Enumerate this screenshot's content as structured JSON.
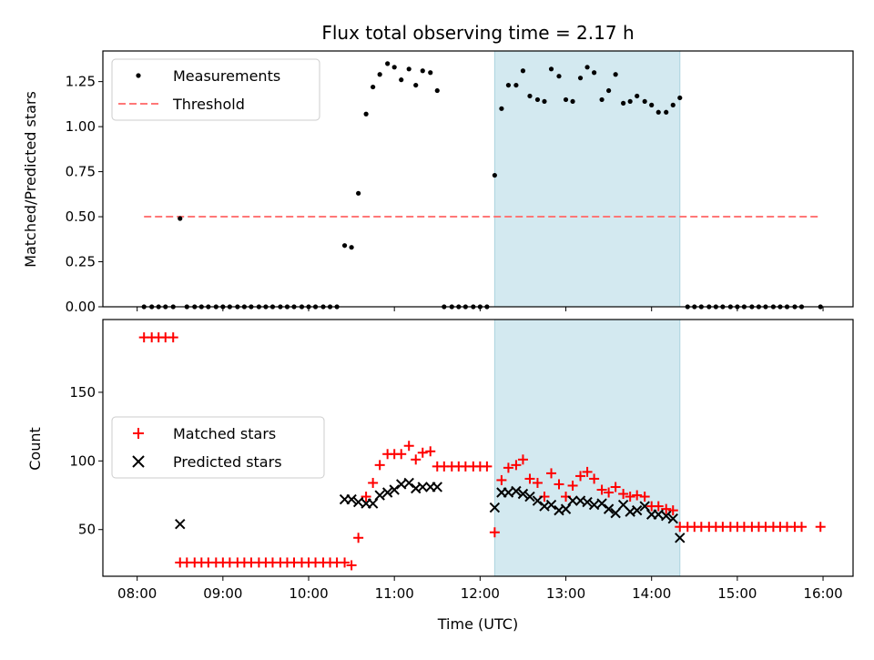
{
  "chart_data": [
    {
      "type": "scatter",
      "title": "Flux total observing time = 2.17 h",
      "xlabel": "",
      "ylabel": "Matched/Predicted stars",
      "xlim": [
        7.6,
        16.35
      ],
      "ylim": [
        0,
        1.42
      ],
      "yticks": [
        0.0,
        0.25,
        0.5,
        0.75,
        1.0,
        1.25
      ],
      "ytick_labels": [
        "0.00",
        "0.25",
        "0.50",
        "0.75",
        "1.00",
        "1.25"
      ],
      "xticks": [
        8,
        9,
        10,
        11,
        12,
        13,
        14,
        15,
        16
      ],
      "shaded_span": [
        12.17,
        14.33
      ],
      "shade_color": "#d3e9f0",
      "threshold": {
        "name": "Threshold",
        "value": 0.5,
        "x_range": [
          8.08,
          15.97
        ],
        "color": "#ff7777"
      },
      "legend": {
        "position": "upper-left",
        "entries": [
          "Measurements",
          "Threshold"
        ]
      },
      "series": [
        {
          "name": "Measurements",
          "color": "#000000",
          "points": [
            [
              8.08,
              0
            ],
            [
              8.17,
              0
            ],
            [
              8.25,
              0
            ],
            [
              8.33,
              0
            ],
            [
              8.42,
              0
            ],
            [
              8.5,
              0.49
            ],
            [
              8.58,
              0
            ],
            [
              8.67,
              0
            ],
            [
              8.75,
              0
            ],
            [
              8.83,
              0
            ],
            [
              8.92,
              0
            ],
            [
              9.0,
              0
            ],
            [
              9.08,
              0
            ],
            [
              9.17,
              0
            ],
            [
              9.25,
              0
            ],
            [
              9.33,
              0
            ],
            [
              9.42,
              0
            ],
            [
              9.5,
              0
            ],
            [
              9.58,
              0
            ],
            [
              9.67,
              0
            ],
            [
              9.75,
              0
            ],
            [
              9.83,
              0
            ],
            [
              9.92,
              0
            ],
            [
              10.0,
              0
            ],
            [
              10.08,
              0
            ],
            [
              10.17,
              0
            ],
            [
              10.25,
              0
            ],
            [
              10.33,
              0
            ],
            [
              10.42,
              0.34
            ],
            [
              10.5,
              0.33
            ],
            [
              10.58,
              0.63
            ],
            [
              10.67,
              1.07
            ],
            [
              10.75,
              1.22
            ],
            [
              10.83,
              1.29
            ],
            [
              10.92,
              1.35
            ],
            [
              11.0,
              1.33
            ],
            [
              11.08,
              1.26
            ],
            [
              11.17,
              1.32
            ],
            [
              11.25,
              1.23
            ],
            [
              11.33,
              1.31
            ],
            [
              11.42,
              1.3
            ],
            [
              11.5,
              1.2
            ],
            [
              11.58,
              0
            ],
            [
              11.67,
              0
            ],
            [
              11.75,
              0
            ],
            [
              11.83,
              0
            ],
            [
              11.92,
              0
            ],
            [
              12.0,
              0
            ],
            [
              12.08,
              0
            ],
            [
              12.17,
              0.73
            ],
            [
              12.25,
              1.1
            ],
            [
              12.33,
              1.23
            ],
            [
              12.42,
              1.23
            ],
            [
              12.5,
              1.31
            ],
            [
              12.58,
              1.17
            ],
            [
              12.67,
              1.15
            ],
            [
              12.75,
              1.14
            ],
            [
              12.83,
              1.32
            ],
            [
              12.92,
              1.28
            ],
            [
              13.0,
              1.15
            ],
            [
              13.08,
              1.14
            ],
            [
              13.17,
              1.27
            ],
            [
              13.25,
              1.33
            ],
            [
              13.33,
              1.3
            ],
            [
              13.42,
              1.15
            ],
            [
              13.5,
              1.2
            ],
            [
              13.58,
              1.29
            ],
            [
              13.67,
              1.13
            ],
            [
              13.75,
              1.14
            ],
            [
              13.83,
              1.17
            ],
            [
              13.92,
              1.14
            ],
            [
              14.0,
              1.12
            ],
            [
              14.08,
              1.08
            ],
            [
              14.17,
              1.08
            ],
            [
              14.25,
              1.12
            ],
            [
              14.33,
              1.16
            ],
            [
              14.42,
              0
            ],
            [
              14.5,
              0
            ],
            [
              14.58,
              0
            ],
            [
              14.67,
              0
            ],
            [
              14.75,
              0
            ],
            [
              14.83,
              0
            ],
            [
              14.92,
              0
            ],
            [
              15.0,
              0
            ],
            [
              15.08,
              0
            ],
            [
              15.17,
              0
            ],
            [
              15.25,
              0
            ],
            [
              15.33,
              0
            ],
            [
              15.42,
              0
            ],
            [
              15.5,
              0
            ],
            [
              15.58,
              0
            ],
            [
              15.67,
              0
            ],
            [
              15.75,
              0
            ],
            [
              15.97,
              0
            ]
          ]
        }
      ]
    },
    {
      "type": "scatter",
      "title": "",
      "xlabel": "Time (UTC)",
      "ylabel": "Count",
      "xlim": [
        7.6,
        16.35
      ],
      "ylim": [
        16,
        203
      ],
      "yticks": [
        50,
        100,
        150
      ],
      "ytick_labels": [
        "50",
        "100",
        "150"
      ],
      "xticks": [
        8,
        9,
        10,
        11,
        12,
        13,
        14,
        15,
        16
      ],
      "xtick_labels": [
        "08:00",
        "09:00",
        "10:00",
        "11:00",
        "12:00",
        "13:00",
        "14:00",
        "15:00",
        "16:00"
      ],
      "shaded_span": [
        12.17,
        14.33
      ],
      "shade_color": "#d3e9f0",
      "legend": {
        "position": "center-left",
        "entries": [
          "Matched stars",
          "Predicted stars"
        ]
      },
      "series": [
        {
          "name": "Matched stars",
          "marker": "plus",
          "color": "#ff0000",
          "points": [
            [
              8.08,
              190
            ],
            [
              8.17,
              190
            ],
            [
              8.25,
              190
            ],
            [
              8.33,
              190
            ],
            [
              8.42,
              190
            ],
            [
              8.5,
              26
            ],
            [
              8.58,
              26
            ],
            [
              8.67,
              26
            ],
            [
              8.75,
              26
            ],
            [
              8.83,
              26
            ],
            [
              8.92,
              26
            ],
            [
              9.0,
              26
            ],
            [
              9.08,
              26
            ],
            [
              9.17,
              26
            ],
            [
              9.25,
              26
            ],
            [
              9.33,
              26
            ],
            [
              9.42,
              26
            ],
            [
              9.5,
              26
            ],
            [
              9.58,
              26
            ],
            [
              9.67,
              26
            ],
            [
              9.75,
              26
            ],
            [
              9.83,
              26
            ],
            [
              9.92,
              26
            ],
            [
              10.0,
              26
            ],
            [
              10.08,
              26
            ],
            [
              10.17,
              26
            ],
            [
              10.25,
              26
            ],
            [
              10.33,
              26
            ],
            [
              10.42,
              26
            ],
            [
              10.5,
              24
            ],
            [
              10.58,
              44
            ],
            [
              10.67,
              74
            ],
            [
              10.75,
              84
            ],
            [
              10.83,
              97
            ],
            [
              10.92,
              105
            ],
            [
              11.0,
              105
            ],
            [
              11.08,
              105
            ],
            [
              11.17,
              111
            ],
            [
              11.25,
              101
            ],
            [
              11.33,
              106
            ],
            [
              11.42,
              107
            ],
            [
              11.5,
              96
            ],
            [
              11.58,
              96
            ],
            [
              11.67,
              96
            ],
            [
              11.75,
              96
            ],
            [
              11.83,
              96
            ],
            [
              11.92,
              96
            ],
            [
              12.0,
              96
            ],
            [
              12.08,
              96
            ],
            [
              12.17,
              48
            ],
            [
              12.25,
              86
            ],
            [
              12.33,
              95
            ],
            [
              12.42,
              97
            ],
            [
              12.5,
              101
            ],
            [
              12.58,
              87
            ],
            [
              12.67,
              84
            ],
            [
              12.75,
              74
            ],
            [
              12.83,
              91
            ],
            [
              12.92,
              83
            ],
            [
              13.0,
              74
            ],
            [
              13.08,
              82
            ],
            [
              13.17,
              89
            ],
            [
              13.25,
              92
            ],
            [
              13.33,
              87
            ],
            [
              13.42,
              79
            ],
            [
              13.5,
              77
            ],
            [
              13.58,
              81
            ],
            [
              13.67,
              76
            ],
            [
              13.75,
              74
            ],
            [
              13.83,
              75
            ],
            [
              13.92,
              74
            ],
            [
              14.0,
              67
            ],
            [
              14.08,
              67
            ],
            [
              14.17,
              65
            ],
            [
              14.25,
              64
            ],
            [
              14.33,
              52
            ],
            [
              14.42,
              52
            ],
            [
              14.5,
              52
            ],
            [
              14.58,
              52
            ],
            [
              14.67,
              52
            ],
            [
              14.75,
              52
            ],
            [
              14.83,
              52
            ],
            [
              14.92,
              52
            ],
            [
              15.0,
              52
            ],
            [
              15.08,
              52
            ],
            [
              15.17,
              52
            ],
            [
              15.25,
              52
            ],
            [
              15.33,
              52
            ],
            [
              15.42,
              52
            ],
            [
              15.5,
              52
            ],
            [
              15.58,
              52
            ],
            [
              15.67,
              52
            ],
            [
              15.75,
              52
            ],
            [
              15.97,
              52
            ]
          ]
        },
        {
          "name": "Predicted stars",
          "marker": "x",
          "color": "#000000",
          "points": [
            [
              8.5,
              54
            ],
            [
              10.42,
              72
            ],
            [
              10.5,
              72
            ],
            [
              10.58,
              70
            ],
            [
              10.67,
              69
            ],
            [
              10.75,
              69
            ],
            [
              10.83,
              75
            ],
            [
              10.92,
              77
            ],
            [
              11.0,
              79
            ],
            [
              11.08,
              83
            ],
            [
              11.17,
              84
            ],
            [
              11.25,
              80
            ],
            [
              11.33,
              81
            ],
            [
              11.42,
              81
            ],
            [
              11.5,
              81
            ],
            [
              12.17,
              66
            ],
            [
              12.25,
              77
            ],
            [
              12.33,
              77
            ],
            [
              12.42,
              78
            ],
            [
              12.5,
              76
            ],
            [
              12.58,
              74
            ],
            [
              12.67,
              71
            ],
            [
              12.75,
              67
            ],
            [
              12.83,
              68
            ],
            [
              12.92,
              64
            ],
            [
              13.0,
              65
            ],
            [
              13.08,
              71
            ],
            [
              13.17,
              71
            ],
            [
              13.25,
              70
            ],
            [
              13.33,
              68
            ],
            [
              13.42,
              69
            ],
            [
              13.5,
              65
            ],
            [
              13.58,
              62
            ],
            [
              13.67,
              68
            ],
            [
              13.75,
              63
            ],
            [
              13.83,
              64
            ],
            [
              13.92,
              67
            ],
            [
              14.0,
              61
            ],
            [
              14.08,
              61
            ],
            [
              14.17,
              60
            ],
            [
              14.25,
              58
            ],
            [
              14.33,
              44
            ]
          ]
        }
      ]
    }
  ]
}
